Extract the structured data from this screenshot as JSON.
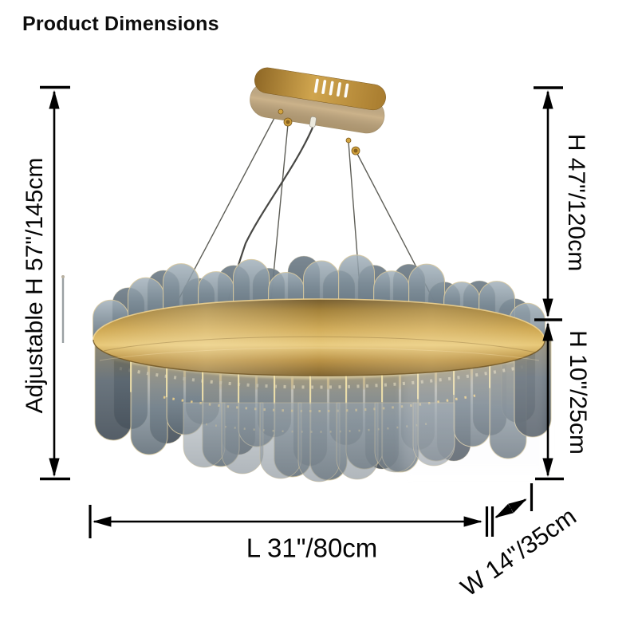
{
  "page": {
    "title": "Product Dimensions",
    "background": "#ffffff"
  },
  "dimensions": {
    "adjustable_height": "Adjustable H 57\"/145cm",
    "hanging_height": "H 47\"/120cm",
    "fixture_height": "H 10\"/25cm",
    "length": "L 31\"/80cm",
    "width": "W 14\"/35cm"
  },
  "illustration": {
    "type": "oval-glass-chandelier",
    "colors": {
      "brass_band": "#c9a351",
      "brass_dark": "#7c5e26",
      "canopy_underside": "#cbb28a",
      "glass_smoke": "#8799a4",
      "glass_light": "#b9c4cb",
      "led_glow": "#ffd978",
      "cable": "#56564f",
      "dimension_lines": "#000000"
    }
  }
}
